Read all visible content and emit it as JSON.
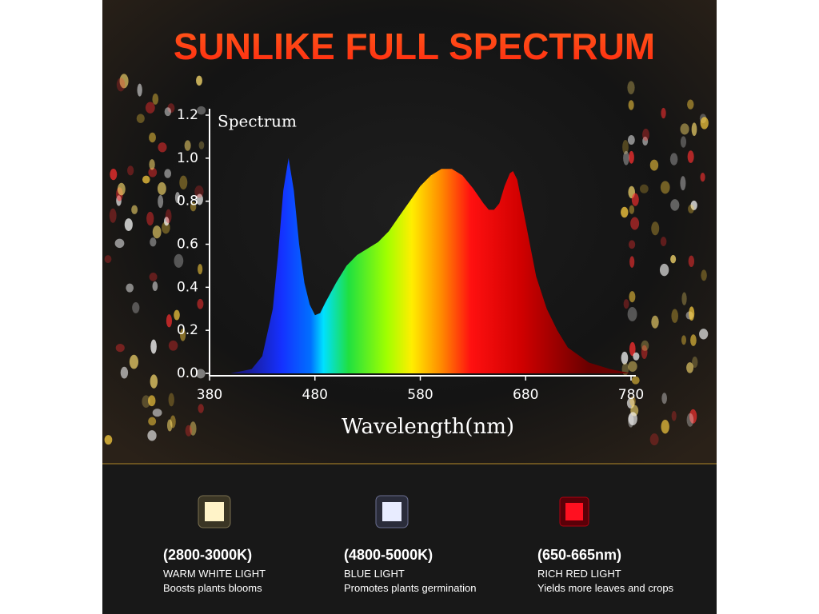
{
  "chart_data": {
    "type": "area",
    "title": "SUNLIKE FULL SPECTRUM",
    "y_label": "Spectrum",
    "x_label": "Wavelength(nm)",
    "x": [
      400,
      420,
      430,
      440,
      445,
      450,
      455,
      460,
      465,
      470,
      475,
      480,
      485,
      490,
      500,
      510,
      520,
      530,
      540,
      550,
      560,
      570,
      580,
      590,
      600,
      610,
      620,
      630,
      640,
      645,
      650,
      655,
      660,
      665,
      668,
      672,
      680,
      690,
      700,
      710,
      720,
      740,
      760,
      780
    ],
    "values": [
      0,
      0.02,
      0.08,
      0.3,
      0.55,
      0.85,
      1.0,
      0.85,
      0.6,
      0.42,
      0.32,
      0.27,
      0.28,
      0.33,
      0.42,
      0.5,
      0.55,
      0.58,
      0.61,
      0.66,
      0.73,
      0.8,
      0.87,
      0.92,
      0.95,
      0.95,
      0.92,
      0.86,
      0.79,
      0.76,
      0.76,
      0.79,
      0.87,
      0.93,
      0.94,
      0.9,
      0.7,
      0.45,
      0.3,
      0.2,
      0.12,
      0.05,
      0.02,
      0
    ],
    "xlim": [
      380,
      780
    ],
    "ylim": [
      0,
      1.2
    ],
    "xticks": [
      380,
      480,
      580,
      680,
      780
    ],
    "yticks": [
      {
        "value": 0,
        "label": "0.0"
      },
      0.2,
      0.4,
      0.6,
      0.8,
      {
        "value": 1,
        "label": "1.0"
      },
      1.2
    ]
  },
  "leds": [
    {
      "range": "(2800-3000K)",
      "name": "WARM WHITE LIGHT",
      "desc": "Boosts plants blooms"
    },
    {
      "range": "(4800-5000K)",
      "name": "BLUE LIGHT",
      "desc": "Promotes plants germination"
    },
    {
      "range": "(650-665nm)",
      "name": "RICH RED LIGHT",
      "desc": "Yields more leaves and crops"
    }
  ]
}
